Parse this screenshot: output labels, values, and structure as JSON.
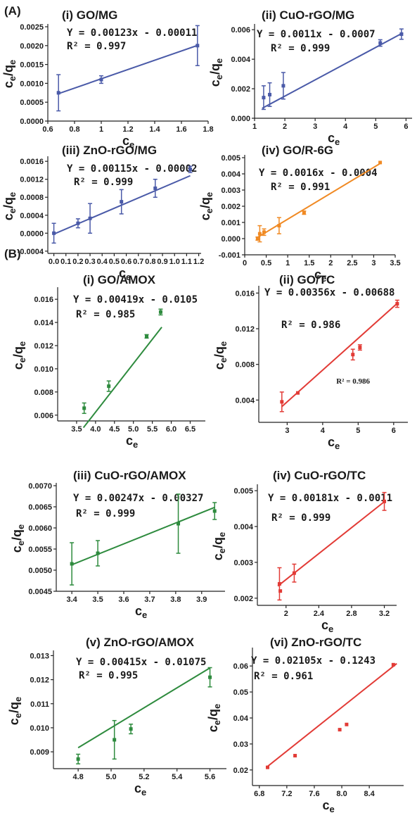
{
  "figure": {
    "section_a_label": "(A)",
    "section_b_label": "(B)"
  },
  "axis_label_text": {
    "x": "c",
    "x_sub": "e",
    "y": "c",
    "y_sub1": "e",
    "y_slash": "/q",
    "y_sub2": "e"
  },
  "chart_data": [
    {
      "id": "a1",
      "type": "scatter",
      "title": "(i) GO/MG",
      "equation": "Y = 0.00123x - 0.00011",
      "r2": "R² = 0.997",
      "xlabel": "ce",
      "ylabel": "ce/qe",
      "xlim": [
        0.6,
        1.8
      ],
      "ylim": [
        0,
        0.0025
      ],
      "xticks": [
        0.6,
        0.8,
        1.0,
        1.2,
        1.4,
        1.6,
        1.8
      ],
      "xtick_labels": [
        "0.6",
        "0.8",
        "1",
        "1.2",
        "1.4",
        "1.6",
        "1.8"
      ],
      "yticks": [
        0,
        0.0005,
        0.001,
        0.0015,
        0.002,
        0.0025
      ],
      "ytick_labels": [
        "0.0000",
        "0.0005",
        "0.0010",
        "0.0015",
        "0.0020",
        "0.0025"
      ],
      "color": "#4a5aa8",
      "points": [
        {
          "x": 0.68,
          "y": 0.00075,
          "err": 0.00048
        },
        {
          "x": 1.0,
          "y": 0.0011,
          "err": 0.0001
        },
        {
          "x": 1.72,
          "y": 0.002,
          "err": 0.00053
        }
      ],
      "fit": {
        "slope": 0.00123,
        "intercept": -0.00011,
        "x_range": [
          0.67,
          1.72
        ]
      }
    },
    {
      "id": "a2",
      "type": "scatter",
      "title": "(ii) CuO-rGO/MG",
      "equation": "Y = 0.0011x - 0.0007",
      "r2": "R² = 0.999",
      "xlabel": "ce",
      "ylabel": "ce/qe",
      "xlim": [
        1,
        6.2
      ],
      "ylim": [
        0,
        0.0062
      ],
      "xticks": [
        1,
        2,
        3,
        4,
        5,
        6
      ],
      "xtick_labels": [
        "1",
        "2",
        "3",
        "4",
        "5",
        "6"
      ],
      "yticks": [
        0,
        0.002,
        0.004,
        0.006
      ],
      "ytick_labels": [
        "0.000",
        "0.002",
        "0.004",
        "0.006"
      ],
      "color": "#4a5aa8",
      "points": [
        {
          "x": 1.3,
          "y": 0.0014,
          "err": 0.0008
        },
        {
          "x": 1.5,
          "y": 0.0016,
          "err": 0.0008
        },
        {
          "x": 1.95,
          "y": 0.0022,
          "err": 0.0009
        },
        {
          "x": 5.15,
          "y": 0.0051,
          "err": 0.00022
        },
        {
          "x": 5.85,
          "y": 0.0057,
          "err": 0.00035
        }
      ],
      "fit": {
        "slope": 0.0011,
        "intercept": -0.0007,
        "x_range": [
          1.25,
          5.9
        ]
      }
    },
    {
      "id": "a3",
      "type": "scatter",
      "title": "(iii) ZnO-rGO/MG",
      "equation": "Y = 0.00115x - 0.00002",
      "r2": "R² = 0.999",
      "xlabel": "ce",
      "ylabel": "ce/qe",
      "xlim": [
        -0.05,
        1.22
      ],
      "ylim": [
        -0.00045,
        0.00165
      ],
      "xticks": [
        0,
        0.1,
        0.2,
        0.3,
        0.4,
        0.5,
        0.6,
        0.7,
        0.8,
        0.9,
        1.0,
        1.1,
        1.2
      ],
      "xtick_labels": [
        "0.0",
        "0.1",
        "0.2",
        "0.3",
        "0.4",
        "0.5",
        "0.6",
        "0.7",
        "0.8",
        "0.9",
        "1.0",
        "1.1",
        "1.2"
      ],
      "yticks": [
        -0.0004,
        0,
        0.0004,
        0.0008,
        0.0012,
        0.0016
      ],
      "ytick_labels": [
        "-0.0004",
        "0.0000",
        "0.0004",
        "0.0008",
        "0.0012",
        "0.0016"
      ],
      "color": "#4a5aa8",
      "points": [
        {
          "x": 0.0,
          "y": 0.0,
          "err": 0.00022
        },
        {
          "x": 0.2,
          "y": 0.00022,
          "err": 0.0001
        },
        {
          "x": 0.3,
          "y": 0.00033,
          "err": 0.00033
        },
        {
          "x": 0.56,
          "y": 0.0007,
          "err": 0.00027
        },
        {
          "x": 0.84,
          "y": 0.001,
          "err": 0.0002
        },
        {
          "x": 1.13,
          "y": 0.00142,
          "err": 7e-05
        }
      ],
      "fit": {
        "slope": 0.00115,
        "intercept": -2e-05,
        "x_range": [
          0.0,
          1.13
        ]
      }
    },
    {
      "id": "a4",
      "type": "scatter",
      "title": "(iv) GO/R-6G",
      "equation": "Y = 0.0016x - 0.0004",
      "r2": "R² = 0.991",
      "xlabel": "ce",
      "ylabel": "ce/qe",
      "xlim": [
        0,
        3.5
      ],
      "ylim": [
        -0.001,
        0.005
      ],
      "xticks": [
        0,
        0.5,
        1.0,
        1.5,
        2.0,
        2.5,
        3.0,
        3.5
      ],
      "xtick_labels": [
        "0",
        "0.5",
        "1",
        "1.5",
        "2",
        "2.5",
        "3",
        "3.5"
      ],
      "yticks": [
        -0.001,
        0,
        0.001,
        0.002,
        0.003,
        0.004,
        0.005
      ],
      "ytick_labels": [
        "-0.001",
        "0.000",
        "0.001",
        "0.002",
        "0.003",
        "0.004",
        "0.005"
      ],
      "color": "#f08a24",
      "points": [
        {
          "x": 0.3,
          "y": 0.0,
          "err": 0.0001
        },
        {
          "x": 0.35,
          "y": 0.0003,
          "err": 0.0005
        },
        {
          "x": 0.45,
          "y": 0.0004,
          "err": 0.0002
        },
        {
          "x": 0.8,
          "y": 0.0008,
          "err": 0.0005
        },
        {
          "x": 1.38,
          "y": 0.0016,
          "err": 0.0001
        },
        {
          "x": 3.15,
          "y": 0.0047,
          "err": 0.0
        }
      ],
      "fit": {
        "slope": 0.0016,
        "intercept": -0.0004,
        "x_range": [
          0.28,
          3.15
        ]
      }
    },
    {
      "id": "b1",
      "type": "scatter",
      "title": "(i) GO/AMOX",
      "equation": "Y = 0.00419x - 0.0105",
      "r2": "R² = 0.985",
      "xlabel": "ce",
      "ylabel": "ce/qe",
      "xlim": [
        3.0,
        6.9
      ],
      "ylim": [
        0.0055,
        0.0168
      ],
      "xticks": [
        3.5,
        4.0,
        4.5,
        5.0,
        5.5,
        6.0,
        6.5
      ],
      "xtick_labels": [
        "3.5",
        "4.0",
        "4.5",
        "5.0",
        "5.5",
        "6.0",
        "6.5"
      ],
      "yticks": [
        0.006,
        0.008,
        0.01,
        0.012,
        0.014,
        0.016
      ],
      "ytick_labels": [
        "0.006",
        "0.008",
        "0.010",
        "0.012",
        "0.014",
        "0.016"
      ],
      "color": "#2e8b3e",
      "points": [
        {
          "x": 3.7,
          "y": 0.0066,
          "err": 0.00045
        },
        {
          "x": 4.35,
          "y": 0.0085,
          "err": 0.00045
        },
        {
          "x": 5.35,
          "y": 0.0128,
          "err": 0.00015
        },
        {
          "x": 5.72,
          "y": 0.0149,
          "err": 0.00025
        }
      ],
      "fit": {
        "slope": 0.00419,
        "intercept": -0.0105,
        "x_range": [
          3.68,
          5.75
        ]
      }
    },
    {
      "id": "b2",
      "type": "scatter",
      "title": "(ii) GO/TC",
      "equation": "Y = 0.00356x - 0.00688",
      "r2": "R² = 0.986",
      "note": "R² = 0.986",
      "xlabel": "ce",
      "ylabel": "ce/qe",
      "xlim": [
        2.2,
        6.4
      ],
      "ylim": [
        0.0015,
        0.0165
      ],
      "xticks": [
        3,
        4,
        5,
        6
      ],
      "xtick_labels": [
        "3",
        "4",
        "5",
        "6"
      ],
      "yticks": [
        0.004,
        0.008,
        0.012,
        0.016
      ],
      "ytick_labels": [
        "0.004",
        "0.008",
        "0.012",
        "0.016"
      ],
      "color": "#e23b36",
      "points": [
        {
          "x": 2.85,
          "y": 0.0038,
          "err": 0.0011
        },
        {
          "x": 3.3,
          "y": 0.0048,
          "err": 0.0
        },
        {
          "x": 4.85,
          "y": 0.0091,
          "err": 0.0006
        },
        {
          "x": 5.05,
          "y": 0.0099,
          "err": 0.0003
        },
        {
          "x": 6.1,
          "y": 0.0148,
          "err": 0.0004
        }
      ],
      "fit": {
        "slope": 0.00356,
        "intercept": -0.00688,
        "x_range": [
          2.85,
          6.12
        ]
      }
    },
    {
      "id": "b3",
      "type": "scatter",
      "title": "(iii) CuO-rGO/AMOX",
      "equation": "Y = 0.00247x - 0.00327",
      "r2": "R² = 0.999",
      "xlabel": "ce",
      "ylabel": "ce/qe",
      "xlim": [
        3.34,
        3.99
      ],
      "ylim": [
        0.0045,
        0.007
      ],
      "xticks": [
        3.4,
        3.5,
        3.6,
        3.7,
        3.8,
        3.9
      ],
      "xtick_labels": [
        "3.4",
        "3.5",
        "3.6",
        "3.7",
        "3.8",
        "3.9"
      ],
      "yticks": [
        0.0045,
        0.005,
        0.0055,
        0.006,
        0.0065,
        0.007
      ],
      "ytick_labels": [
        "0.0045",
        "0.0050",
        "0.0055",
        "0.0060",
        "0.0065",
        "0.0070"
      ],
      "color": "#2e8b3e",
      "points": [
        {
          "x": 3.4,
          "y": 0.00515,
          "err": 0.0005
        },
        {
          "x": 3.5,
          "y": 0.0054,
          "err": 0.0003
        },
        {
          "x": 3.81,
          "y": 0.0061,
          "err": 0.0007
        },
        {
          "x": 3.95,
          "y": 0.0064,
          "err": 0.0002
        }
      ],
      "fit": {
        "slope": 0.00247,
        "intercept": -0.00327,
        "x_range": [
          3.4,
          3.95
        ]
      }
    },
    {
      "id": "b4",
      "type": "scatter",
      "title": "(iv) CuO-rGO/TC",
      "equation": "Y = 0.00181x - 0.0011",
      "r2": "R² = 0.999",
      "xlabel": "ce",
      "ylabel": "ce/qe",
      "xlim": [
        1.65,
        3.35
      ],
      "ylim": [
        0.0018,
        0.0051
      ],
      "xticks": [
        2.0,
        2.4,
        2.8,
        3.2
      ],
      "xtick_labels": [
        "2",
        "2.4",
        "2.8",
        "3.2"
      ],
      "yticks": [
        0.002,
        0.003,
        0.004,
        0.005
      ],
      "ytick_labels": [
        "0.002",
        "0.003",
        "0.004",
        "0.005"
      ],
      "color": "#e23b36",
      "points": [
        {
          "x": 1.92,
          "y": 0.0024,
          "err": 0.00045
        },
        {
          "x": 1.93,
          "y": 0.0022,
          "err": 0.0
        },
        {
          "x": 2.1,
          "y": 0.0027,
          "err": 0.00025
        },
        {
          "x": 3.2,
          "y": 0.0047,
          "err": 0.00025
        }
      ],
      "fit": {
        "slope": 0.00181,
        "intercept": -0.0011,
        "x_range": [
          1.9,
          3.2
        ]
      }
    },
    {
      "id": "b5",
      "type": "scatter",
      "title": "(v) ZnO-rGO/AMOX",
      "equation": "Y = 0.00415x - 0.01075",
      "r2": "R² = 0.995",
      "xlabel": "ce",
      "ylabel": "ce/qe",
      "xlim": [
        4.65,
        5.7
      ],
      "ylim": [
        0.0083,
        0.0131
      ],
      "xticks": [
        4.8,
        5.0,
        5.2,
        5.4,
        5.6
      ],
      "xtick_labels": [
        "4.8",
        "5.0",
        "5.2",
        "5.4",
        "5.6"
      ],
      "yticks": [
        0.009,
        0.01,
        0.011,
        0.012,
        0.013
      ],
      "ytick_labels": [
        "0.009",
        "0.010",
        "0.011",
        "0.012",
        "0.013"
      ],
      "color": "#2e8b3e",
      "points": [
        {
          "x": 4.8,
          "y": 0.0087,
          "err": 0.0002
        },
        {
          "x": 5.02,
          "y": 0.0095,
          "err": 0.0008
        },
        {
          "x": 5.12,
          "y": 0.00995,
          "err": 0.0002
        },
        {
          "x": 5.6,
          "y": 0.0121,
          "err": 0.0004
        }
      ],
      "fit": {
        "slope": 0.00415,
        "intercept": -0.01075,
        "x_range": [
          4.8,
          5.6
        ]
      }
    },
    {
      "id": "b6",
      "type": "scatter",
      "title": "(vi) ZnO-rGO/TC",
      "equation": "Y = 0.02105x - 0.1243",
      "r2": "R² = 0.961",
      "xlabel": "ce",
      "ylabel": "ce/qe",
      "xlim": [
        6.7,
        8.9
      ],
      "ylim": [
        0.014,
        0.066
      ],
      "xticks": [
        6.8,
        7.2,
        7.6,
        8.0,
        8.4
      ],
      "xtick_labels": [
        "6.8",
        "7.2",
        "7.6",
        "8.0",
        "8.4"
      ],
      "yticks": [
        0.02,
        0.03,
        0.04,
        0.05,
        0.06
      ],
      "ytick_labels": [
        "0.02",
        "0.03",
        "0.04",
        "0.05",
        "0.06"
      ],
      "color": "#e23b36",
      "points": [
        {
          "x": 6.92,
          "y": 0.021,
          "err": 0.0
        },
        {
          "x": 7.32,
          "y": 0.0255,
          "err": 0.0
        },
        {
          "x": 7.97,
          "y": 0.0355,
          "err": 0.0
        },
        {
          "x": 8.07,
          "y": 0.0375,
          "err": 0.0
        },
        {
          "x": 8.75,
          "y": 0.0605,
          "err": 0.0
        }
      ],
      "fit": {
        "slope": 0.02105,
        "intercept": -0.1243,
        "x_range": [
          6.92,
          8.8
        ]
      }
    }
  ]
}
